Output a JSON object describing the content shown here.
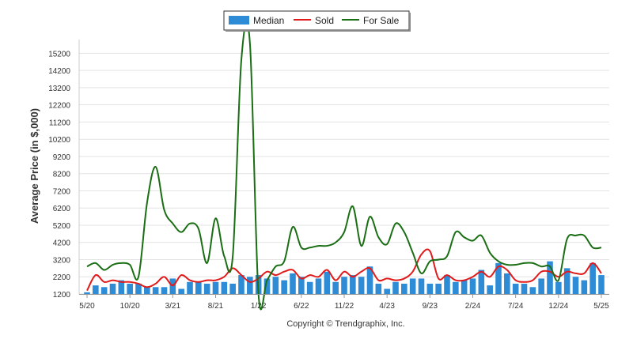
{
  "chart_data": {
    "type": "bar",
    "ylabel": "Average Price (in $,000)",
    "ylim": [
      1200,
      16000
    ],
    "yticks": [
      1200,
      2200,
      3200,
      4200,
      5200,
      6200,
      7200,
      8200,
      9200,
      10200,
      11200,
      12200,
      13200,
      14200,
      15200
    ],
    "x_tick_labels": [
      "5/20",
      "10/20",
      "3/21",
      "8/21",
      "1/22",
      "6/22",
      "11/22",
      "4/23",
      "9/23",
      "2/24",
      "7/24",
      "12/24",
      "5/25"
    ],
    "x_tick_every": 5,
    "months": 61,
    "grid": true,
    "legend_placement": "top-center",
    "legend": [
      {
        "name": "Median",
        "color": "#2e8bd6",
        "kind": "bar"
      },
      {
        "name": "Sold",
        "color": "#e11b1b",
        "kind": "line"
      },
      {
        "name": "For Sale",
        "color": "#1a6e14",
        "kind": "line"
      }
    ],
    "series": [
      {
        "name": "Median",
        "type": "bar",
        "color": "#2e8bd6",
        "values": [
          1300,
          1700,
          1600,
          1800,
          2000,
          1800,
          1800,
          1600,
          1600,
          1600,
          2100,
          1500,
          1900,
          1900,
          1800,
          1900,
          1900,
          1800,
          2300,
          2200,
          2300,
          2100,
          2200,
          2000,
          2400,
          2200,
          1900,
          2100,
          2500,
          1900,
          2200,
          2300,
          2200,
          2800,
          1800,
          1500,
          1900,
          1800,
          2100,
          2100,
          1800,
          1800,
          2300,
          1900,
          2000,
          2100,
          2600,
          1700,
          3000,
          2400,
          1800,
          1800,
          1600,
          2100,
          3100,
          1900,
          2700,
          2200,
          2000,
          3000,
          2300
        ]
      },
      {
        "name": "Sold",
        "type": "line",
        "color": "#e11b1b",
        "values": [
          1400,
          2300,
          1900,
          2000,
          1900,
          1900,
          1800,
          1600,
          1800,
          2200,
          1700,
          2300,
          2000,
          1900,
          2000,
          2000,
          2200,
          2700,
          2300,
          1900,
          2100,
          2500,
          2300,
          2500,
          2600,
          2100,
          2300,
          2200,
          2600,
          2000,
          2500,
          2200,
          2500,
          2700,
          2000,
          2100,
          2000,
          2100,
          2500,
          3500,
          3700,
          2100,
          2300,
          2000,
          2000,
          2200,
          2500,
          2200,
          2800,
          2600,
          2000,
          1900,
          2000,
          2500,
          2500,
          2200,
          2500,
          2400,
          2400,
          3000,
          2400
        ]
      },
      {
        "name": "For Sale",
        "type": "line",
        "color": "#1a6e14",
        "values": [
          2800,
          3000,
          2600,
          2900,
          3000,
          2900,
          2200,
          6500,
          8600,
          6100,
          5300,
          4800,
          5300,
          5000,
          3000,
          5600,
          3400,
          3400,
          14800,
          15800,
          1200,
          2000,
          2800,
          3100,
          5100,
          3900,
          3900,
          4000,
          4000,
          4200,
          4800,
          6300,
          4000,
          5700,
          4500,
          4100,
          5300,
          4800,
          3600,
          2400,
          3100,
          3200,
          3400,
          4800,
          4500,
          4300,
          4600,
          3600,
          3100,
          2900,
          2900,
          3000,
          3000,
          2800,
          2800,
          2000,
          4400,
          4600,
          4600,
          3900,
          3900
        ]
      }
    ],
    "copyright": "Copyright © Trendgraphix, Inc."
  }
}
